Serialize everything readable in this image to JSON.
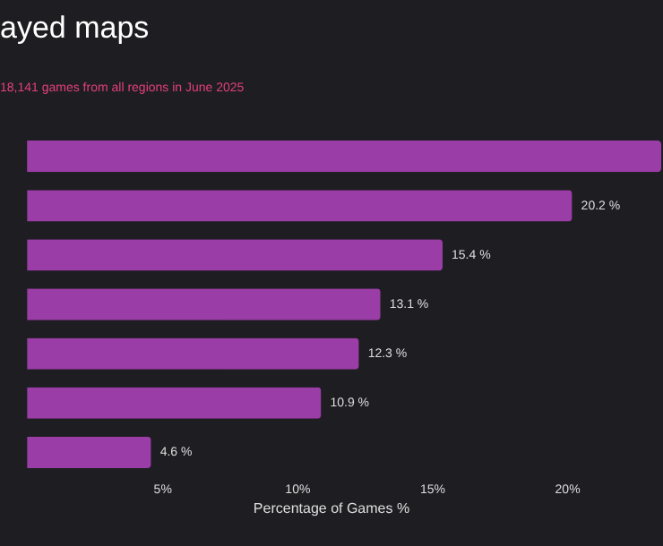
{
  "chart_data": {
    "type": "bar",
    "orientation": "horizontal",
    "title": "ayed maps",
    "subtitle": "18,141 games from all regions in June 2025",
    "categories": [
      null,
      null,
      null,
      null,
      null,
      null,
      null
    ],
    "values": [
      23.5,
      20.2,
      15.4,
      13.1,
      12.3,
      10.9,
      4.6
    ],
    "value_labels": [
      null,
      "20.2 %",
      "15.4 %",
      "13.1 %",
      "12.3 %",
      "10.9 %",
      "4.6 %"
    ],
    "color": "#9a3da6",
    "xlabel": "Percentage of Games %",
    "xlim": [
      -1,
      23.5
    ],
    "xticks": [
      {
        "value": 5,
        "label": "5%"
      },
      {
        "value": 10,
        "label": "10%"
      },
      {
        "value": 15,
        "label": "15%"
      },
      {
        "value": 20,
        "label": "20%"
      }
    ],
    "grid": false,
    "tick_labels": "x"
  }
}
